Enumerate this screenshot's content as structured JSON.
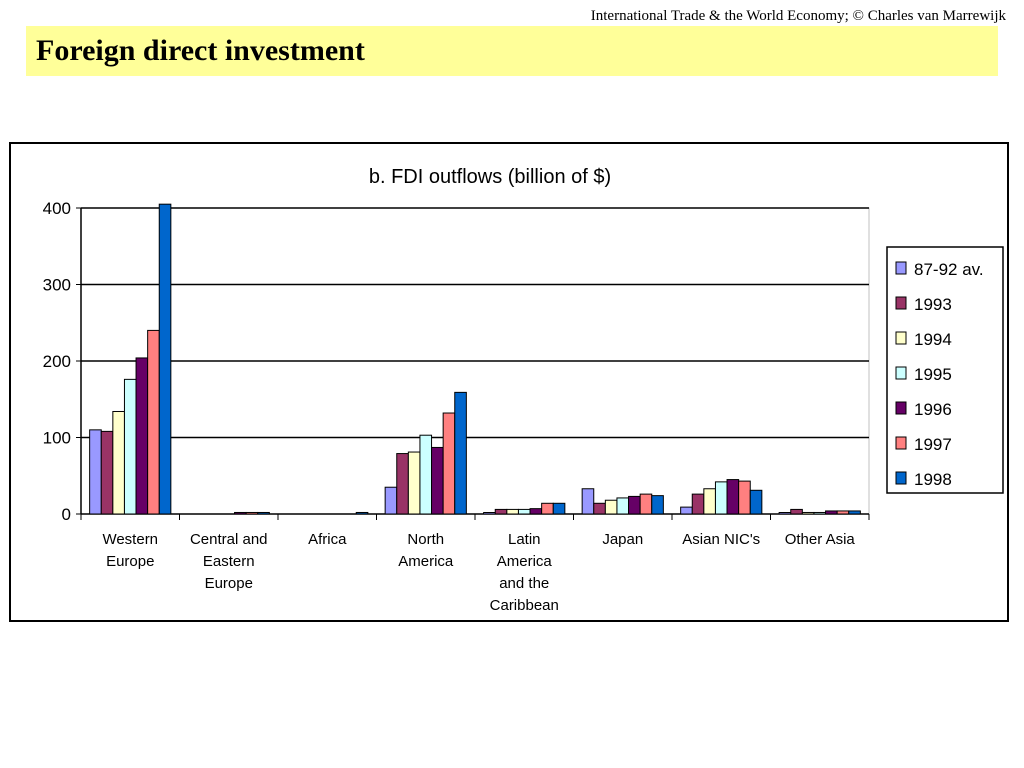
{
  "header": {
    "credit": "International Trade & the World Economy;  © Charles van Marrewijk",
    "title": "Foreign direct investment"
  },
  "chart_data": {
    "type": "bar",
    "title": "b. FDI outflows (billion of $)",
    "xlabel": "",
    "ylabel": "",
    "ylim": [
      0,
      400
    ],
    "yticks": [
      0,
      100,
      200,
      300,
      400
    ],
    "grid": true,
    "legend_position": "right",
    "categories": [
      [
        "Western",
        "Europe"
      ],
      [
        "Central and",
        "Eastern",
        "Europe"
      ],
      [
        "Africa"
      ],
      [
        "North",
        "America"
      ],
      [
        "Latin",
        "America",
        "and the",
        "Caribbean"
      ],
      [
        "Japan"
      ],
      [
        "Asian NIC's"
      ],
      [
        "Other Asia"
      ]
    ],
    "series": [
      {
        "name": "87-92 av.",
        "color": "#9999ff",
        "values": [
          110,
          0,
          0,
          35,
          1,
          33,
          9,
          1
        ]
      },
      {
        "name": "1993",
        "color": "#993366",
        "values": [
          108,
          0,
          0,
          79,
          6,
          14,
          26,
          6
        ]
      },
      {
        "name": "1994",
        "color": "#ffffcc",
        "values": [
          134,
          0,
          0,
          81,
          6,
          18,
          33,
          2
        ]
      },
      {
        "name": "1995",
        "color": "#ccffff",
        "values": [
          176,
          0,
          0,
          103,
          6,
          21,
          42,
          2
        ]
      },
      {
        "name": "1996",
        "color": "#660066",
        "values": [
          204,
          2,
          0,
          87,
          7,
          23,
          45,
          4
        ]
      },
      {
        "name": "1997",
        "color": "#ff8080",
        "values": [
          240,
          2,
          0,
          132,
          14,
          26,
          43,
          4
        ]
      },
      {
        "name": "1998",
        "color": "#0066cc",
        "values": [
          405,
          2,
          2,
          159,
          14,
          24,
          31,
          4
        ]
      }
    ]
  }
}
